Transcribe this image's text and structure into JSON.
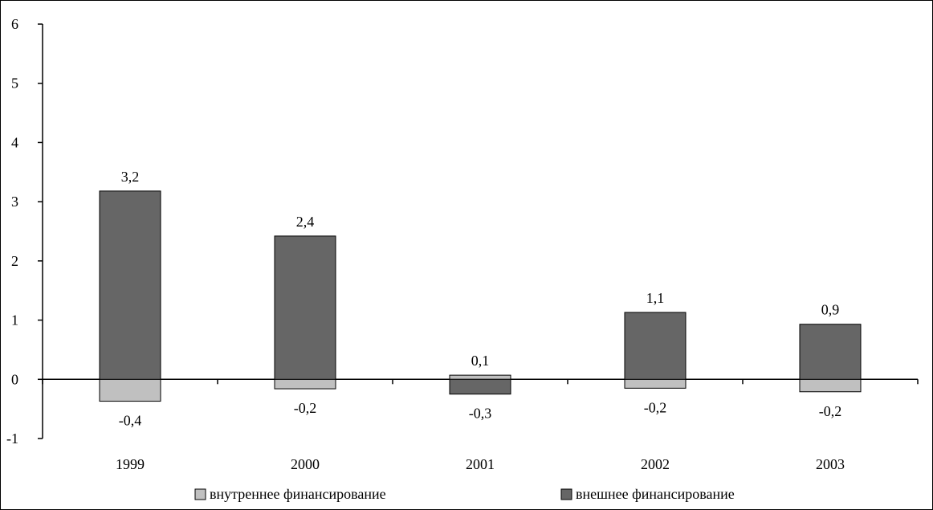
{
  "chart_data": {
    "type": "bar",
    "categories": [
      "1999",
      "2000",
      "2001",
      "2002",
      "2003"
    ],
    "series": [
      {
        "name": "внутреннее финансирование",
        "color": "#c0c0c0",
        "values": [
          -0.37,
          -0.16,
          0.07,
          -0.15,
          -0.21
        ],
        "labels": [
          "-0,4",
          "-0,2",
          "0,1",
          "-0,2",
          "-0,2"
        ]
      },
      {
        "name": "внешнее финансирование",
        "color": "#666666",
        "values": [
          3.18,
          2.42,
          -0.25,
          1.13,
          0.93
        ],
        "labels": [
          "3,2",
          "2,4",
          "-0,3",
          "1,1",
          "0,9"
        ]
      }
    ],
    "ylim": [
      -1,
      6
    ],
    "yticks": [
      "-1",
      "0",
      "1",
      "2",
      "3",
      "4",
      "5",
      "6"
    ],
    "xlabel": "",
    "ylabel": "",
    "title": "",
    "legend_position": "bottom",
    "grid": false
  }
}
